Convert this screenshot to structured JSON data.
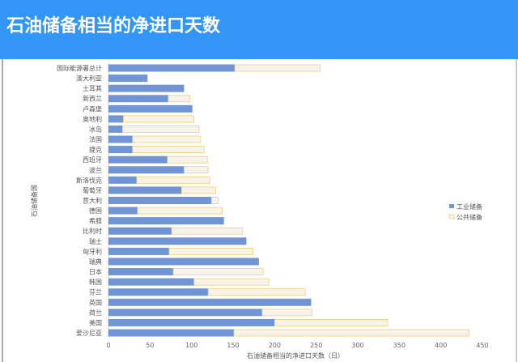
{
  "header": {
    "title": "石油储备相当的净进口天数"
  },
  "chart_data": {
    "type": "bar",
    "orientation": "horizontal",
    "stacked": true,
    "title": "",
    "xlabel": "石油储备相当的净进口天数（日）",
    "ylabel": "石油储备国",
    "xlim": [
      0,
      450
    ],
    "xticks": [
      0,
      50,
      100,
      150,
      200,
      250,
      300,
      350,
      400,
      450
    ],
    "grid": false,
    "legend_position": "right",
    "categories": [
      "国际能源署总计",
      "澳大利亚",
      "土耳其",
      "新西兰",
      "卢森堡",
      "奥地利",
      "冰岛",
      "法国",
      "捷克",
      "西班牙",
      "波兰",
      "斯洛伐克",
      "葡萄牙",
      "意大利",
      "德国",
      "希腊",
      "比利时",
      "瑞士",
      "匈牙利",
      "瑞典",
      "日本",
      "韩国",
      "芬兰",
      "英国",
      "荷兰",
      "美国",
      "爱沙尼亚"
    ],
    "series": [
      {
        "name": "工业储备",
        "color": "#7094d4",
        "values": [
          152,
          47,
          91,
          72,
          101,
          18,
          17,
          29,
          29,
          71,
          91,
          34,
          88,
          124,
          35,
          139,
          76,
          166,
          73,
          181,
          78,
          103,
          120,
          244,
          185,
          200,
          151
        ]
      },
      {
        "name": "公共储备",
        "color": "#f7f3ea",
        "border": "#f0d070",
        "values": [
          103,
          0,
          0,
          26,
          0,
          85,
          92,
          82,
          86,
          48,
          29,
          88,
          41,
          8,
          102,
          0,
          85,
          0,
          101,
          0,
          108,
          90,
          117,
          0,
          60,
          136,
          283
        ]
      }
    ]
  }
}
